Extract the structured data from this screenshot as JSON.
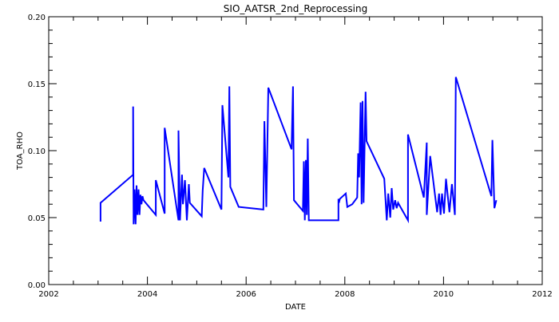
{
  "chart_data": {
    "type": "line",
    "title": "SIO_AATSR_2nd_Reprocessing",
    "xlabel": "DATE",
    "ylabel": "TOA_RHO",
    "xlim": [
      2002,
      2012
    ],
    "ylim": [
      0.0,
      0.2
    ],
    "x_ticks": [
      2002,
      2004,
      2006,
      2008,
      2010,
      2012
    ],
    "x_tick_labels": [
      "2002",
      "2004",
      "2006",
      "2008",
      "2010",
      "2012"
    ],
    "x_minor_step": 0.5,
    "y_ticks": [
      0.0,
      0.05,
      0.1,
      0.15,
      0.2
    ],
    "y_tick_labels": [
      "0.00",
      "0.05",
      "0.10",
      "0.15",
      "0.20"
    ],
    "y_minor_step": 0.01,
    "grid": false,
    "series": [
      {
        "color": "#0000ff",
        "x": [
          2003.05,
          2003.05,
          2003.71,
          2003.71,
          2003.72,
          2003.74,
          2003.76,
          2003.78,
          2003.8,
          2003.82,
          2003.84,
          2003.86,
          2003.88,
          2003.9,
          2003.92,
          2004.17,
          2004.17,
          2004.35,
          2004.35,
          2004.63,
          2004.63,
          2004.66,
          2004.7,
          2004.72,
          2004.76,
          2004.8,
          2004.84,
          2004.86,
          2005.1,
          2005.12,
          2005.15,
          2005.5,
          2005.52,
          2005.64,
          2005.66,
          2005.68,
          2005.85,
          2006.35,
          2006.37,
          2006.41,
          2006.45,
          2006.92,
          2006.95,
          2006.97,
          2007.15,
          2007.17,
          2007.19,
          2007.21,
          2007.23,
          2007.25,
          2007.27,
          2007.87,
          2007.87,
          2007.88,
          2007.9,
          2008.02,
          2008.05,
          2008.15,
          2008.25,
          2008.27,
          2008.29,
          2008.32,
          2008.34,
          2008.36,
          2008.38,
          2008.42,
          2008.44,
          2008.8,
          2008.85,
          2008.88,
          2008.92,
          2008.95,
          2008.98,
          2009.02,
          2009.05,
          2009.08,
          2009.28,
          2009.28,
          2009.6,
          2009.66,
          2009.66,
          2009.73,
          2009.87,
          2009.91,
          2009.94,
          2009.97,
          2010.01,
          2010.05,
          2010.12,
          2010.17,
          2010.23,
          2010.25,
          2010.97,
          2010.99,
          2011.03,
          2011.07
        ],
        "y": [
          0.047,
          0.061,
          0.082,
          0.133,
          0.045,
          0.071,
          0.045,
          0.074,
          0.052,
          0.071,
          0.052,
          0.067,
          0.06,
          0.066,
          0.063,
          0.052,
          0.078,
          0.053,
          0.117,
          0.048,
          0.115,
          0.048,
          0.082,
          0.06,
          0.078,
          0.048,
          0.075,
          0.061,
          0.051,
          0.07,
          0.087,
          0.056,
          0.134,
          0.08,
          0.148,
          0.073,
          0.058,
          0.056,
          0.122,
          0.058,
          0.147,
          0.101,
          0.148,
          0.063,
          0.055,
          0.092,
          0.048,
          0.093,
          0.052,
          0.109,
          0.048,
          0.048,
          0.064,
          0.061,
          0.064,
          0.068,
          0.058,
          0.06,
          0.065,
          0.098,
          0.08,
          0.136,
          0.06,
          0.137,
          0.061,
          0.144,
          0.107,
          0.079,
          0.048,
          0.068,
          0.05,
          0.072,
          0.056,
          0.063,
          0.057,
          0.061,
          0.048,
          0.112,
          0.065,
          0.106,
          0.052,
          0.096,
          0.054,
          0.068,
          0.052,
          0.068,
          0.053,
          0.079,
          0.054,
          0.075,
          0.052,
          0.155,
          0.066,
          0.108,
          0.057,
          0.063
        ]
      }
    ]
  }
}
